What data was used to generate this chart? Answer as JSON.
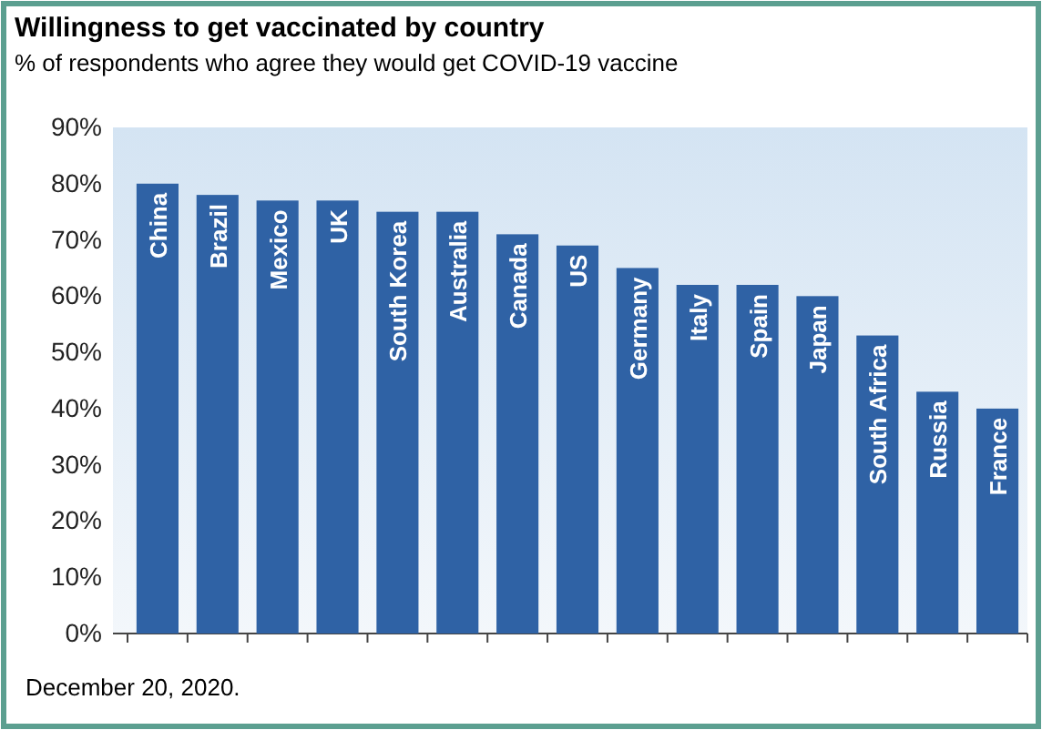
{
  "chart_data": {
    "type": "bar",
    "title": "Willingness to get vaccinated by country",
    "subtitle": "% of respondents who agree they would get COVID-19 vaccine",
    "categories": [
      "China",
      "Brazil",
      "Mexico",
      "UK",
      "South Korea",
      "Australia",
      "Canada",
      "US",
      "Germany",
      "Italy",
      "Spain",
      "Japan",
      "South Africa",
      "Russia",
      "France"
    ],
    "values": [
      80,
      78,
      77,
      77,
      75,
      75,
      71,
      69,
      65,
      62,
      62,
      60,
      53,
      43,
      40
    ],
    "color": "#2f62a5",
    "ylim": [
      0,
      90
    ],
    "yticks": [
      {
        "value": 0,
        "label": "0%"
      },
      {
        "value": 10,
        "label": "10%"
      },
      {
        "value": 20,
        "label": "20%"
      },
      {
        "value": 30,
        "label": "30%"
      },
      {
        "value": 40,
        "label": "40%"
      },
      {
        "value": 50,
        "label": "50%"
      },
      {
        "value": 60,
        "label": "60%"
      },
      {
        "value": 70,
        "label": "70%"
      },
      {
        "value": 80,
        "label": "80%"
      },
      {
        "value": 90,
        "label": "90%"
      }
    ],
    "grid": false,
    "annotations": [
      "December 20, 2020."
    ]
  }
}
